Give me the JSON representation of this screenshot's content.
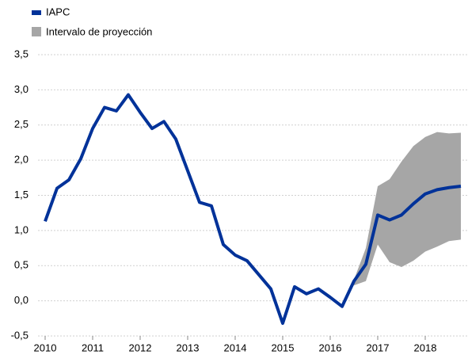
{
  "chart_data": {
    "type": "line",
    "legend": [
      "IAPC",
      "Intervalo de proyección"
    ],
    "x": [
      2010,
      2010.25,
      2010.5,
      2010.75,
      2011,
      2011.25,
      2011.5,
      2011.75,
      2012,
      2012.25,
      2012.5,
      2012.75,
      2013,
      2013.25,
      2013.5,
      2013.75,
      2014,
      2014.25,
      2014.5,
      2014.75,
      2015,
      2015.25,
      2015.5,
      2015.75,
      2016,
      2016.25,
      2016.5,
      2016.75,
      2017,
      2017.25,
      2017.5,
      2017.75,
      2018,
      2018.25,
      2018.5,
      2018.75
    ],
    "series": [
      {
        "name": "IAPC",
        "color": "#003299",
        "values": [
          1.13,
          1.6,
          1.72,
          2.02,
          2.45,
          2.75,
          2.7,
          2.93,
          2.68,
          2.45,
          2.55,
          2.3,
          1.85,
          1.4,
          1.35,
          0.8,
          0.65,
          0.57,
          0.37,
          0.17,
          -0.32,
          0.2,
          0.1,
          0.17,
          0.05,
          -0.08,
          0.28,
          0.52,
          1.22,
          1.15,
          1.22,
          1.38,
          1.52,
          1.58,
          1.61,
          1.63
        ]
      }
    ],
    "band": {
      "name": "Intervalo de proyección",
      "color": "#a6a6a6",
      "x": [
        2016.5,
        2016.75,
        2017,
        2017.25,
        2017.5,
        2017.75,
        2018,
        2018.25,
        2018.5,
        2018.75
      ],
      "upper": [
        0.3,
        0.75,
        1.63,
        1.73,
        1.98,
        2.2,
        2.33,
        2.4,
        2.38,
        2.39
      ],
      "lower": [
        0.22,
        0.28,
        0.8,
        0.55,
        0.48,
        0.57,
        0.7,
        0.77,
        0.85,
        0.87
      ]
    },
    "xlim": [
      2009.85,
      2018.9
    ],
    "xticks": [
      2010,
      2011,
      2012,
      2013,
      2014,
      2015,
      2016,
      2017,
      2018
    ],
    "ylim": [
      -0.5,
      3.5
    ],
    "yticks": [
      {
        "value": -0.5,
        "label": "-0,5"
      },
      {
        "value": 0,
        "label": "0,0"
      },
      {
        "value": 0.5,
        "label": "0,5"
      },
      {
        "value": 1,
        "label": "1,0"
      },
      {
        "value": 1.5,
        "label": "1,5"
      },
      {
        "value": 2,
        "label": "2,0"
      },
      {
        "value": 2.5,
        "label": "2,5"
      },
      {
        "value": 3,
        "label": "3,0"
      },
      {
        "value": 3.5,
        "label": "3,5"
      }
    ],
    "grid": true
  }
}
